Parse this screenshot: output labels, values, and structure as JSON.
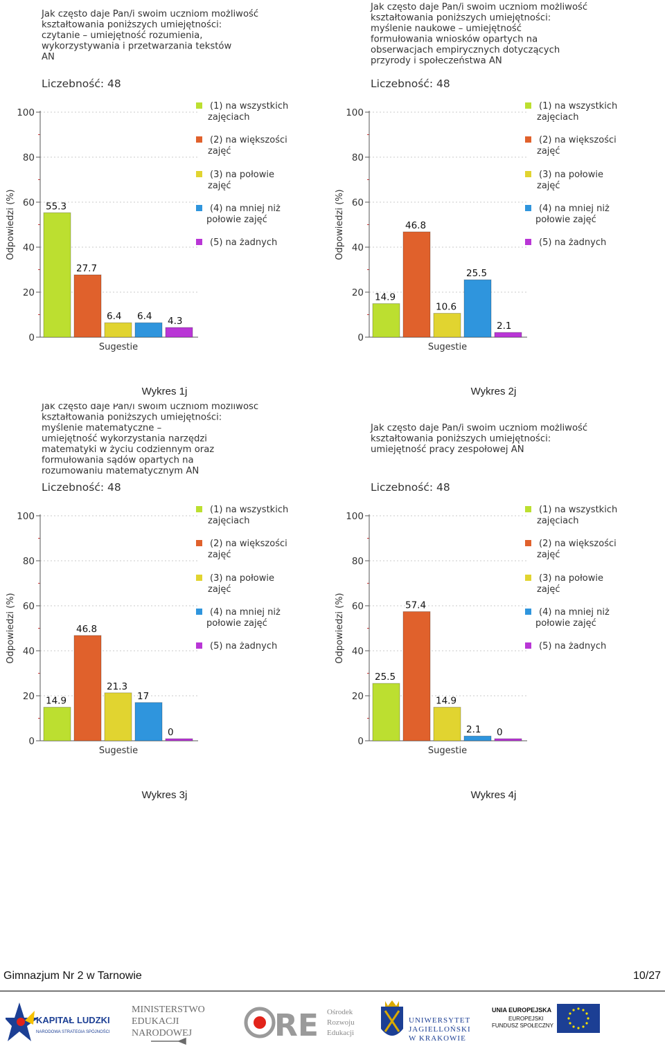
{
  "chart_data": [
    {
      "type": "bar",
      "title": "Jak często daje Pan/i swoim uczniom możliwość kształtowania poniższych umiejętności: czytanie – umiejętność rozumienia, wykorzystywania i przetwarzania tekstów AN",
      "title_lines": [
        "Jak często daje Pan/i swoim uczniom możliwość",
        "kształtowania poniższych umiejętności:",
        "czytanie – umiejętność rozumienia,",
        "wykorzystywania i przetwarzania tekstów",
        "AN"
      ],
      "count_label": "Liczebność: 48",
      "categories": [
        "(1) na wszystkich zajęciach",
        "(2) na większości zajęć",
        "(3) na połowie zajęć",
        "(4) na mniej niż połowie zajęć",
        "(5) na żadnych"
      ],
      "values": [
        55.3,
        27.7,
        6.4,
        6.4,
        4.3
      ],
      "value_labels": [
        "55.3",
        "27.7",
        "6.4",
        "6.4",
        "4.3"
      ],
      "xlabel": "Sugestie",
      "ylabel": "Odpowiedzi (%)",
      "ylim": [
        0,
        100
      ],
      "yticks": [
        "0",
        "20",
        "40",
        "60",
        "80",
        "100"
      ],
      "caption": "Wykres 1j"
    },
    {
      "type": "bar",
      "title": "Jak często daje Pan/i swoim uczniom możliwość kształtowania poniższych umiejętności: myślenie naukowe – umiejętność formułowania wniosków opartych na obserwacjach empirycznych dotyczących przyrody i społeczeństwa AN",
      "title_lines": [
        "Jak często daje Pan/i swoim uczniom możliwość",
        "kształtowania poniższych umiejętności:",
        "myślenie naukowe – umiejętność",
        "formułowania wniosków opartych na",
        "obserwacjach empirycznych dotyczących",
        "przyrody i społeczeństwa AN"
      ],
      "count_label": "Liczebność: 48",
      "categories": [
        "(1) na wszystkich zajęciach",
        "(2) na większości zajęć",
        "(3) na połowie zajęć",
        "(4) na mniej niż połowie zajęć",
        "(5) na żadnych"
      ],
      "values": [
        14.9,
        46.8,
        10.6,
        25.5,
        2.1
      ],
      "value_labels": [
        "14.9",
        "46.8",
        "10.6",
        "25.5",
        "2.1"
      ],
      "xlabel": "Sugestie",
      "ylabel": "Odpowiedzi (%)",
      "ylim": [
        0,
        100
      ],
      "yticks": [
        "0",
        "20",
        "40",
        "60",
        "80",
        "100"
      ],
      "caption": "Wykres 2j"
    },
    {
      "type": "bar",
      "title": "Jak często daje Pan/i swoim uczniom możliwość kształtowania poniższych umiejętności: myślenie matematyczne – umiejętność wykorzystania narzędzi matematyki w życiu codziennym oraz formułowania sądów opartych na rozumowaniu matematycznym AN",
      "title_lines": [
        "Jak często daje Pan/i swoim uczniom możliwość",
        "kształtowania poniższych umiejętności:",
        "myślenie matematyczne –",
        "umiejętność wykorzystania narzędzi",
        "matematyki w życiu codziennym oraz",
        "formułowania sądów opartych na",
        "rozumowaniu matematycznym AN"
      ],
      "count_label": "Liczebność: 48",
      "categories": [
        "(1) na wszystkich zajęciach",
        "(2) na większości zajęć",
        "(3) na połowie zajęć",
        "(4) na mniej niż połowie zajęć",
        "(5) na żadnych"
      ],
      "values": [
        14.9,
        46.8,
        21.3,
        17,
        0
      ],
      "value_labels": [
        "14.9",
        "46.8",
        "21.3",
        "17",
        "0"
      ],
      "xlabel": "Sugestie",
      "ylabel": "Odpowiedzi (%)",
      "ylim": [
        0,
        100
      ],
      "yticks": [
        "0",
        "20",
        "40",
        "60",
        "80",
        "100"
      ],
      "caption": "Wykres 3j"
    },
    {
      "type": "bar",
      "title": "Jak często daje Pan/i swoim uczniom możliwość kształtowania poniższych umiejętności: umiejętność pracy zespołowej AN",
      "title_lines": [
        "Jak często daje Pan/i swoim uczniom możliwość",
        "kształtowania poniższych umiejętności:",
        "umiejętność pracy zespołowej AN"
      ],
      "count_label": "Liczebność: 48",
      "categories": [
        "(1) na wszystkich zajęciach",
        "(2) na większości zajęć",
        "(3) na połowie zajęć",
        "(4) na mniej niż połowie zajęć",
        "(5) na żadnych"
      ],
      "values": [
        25.5,
        57.4,
        14.9,
        2.1,
        0
      ],
      "value_labels": [
        "25.5",
        "57.4",
        "14.9",
        "2.1",
        "0"
      ],
      "xlabel": "Sugestie",
      "ylabel": "Odpowiedzi (%)",
      "ylim": [
        0,
        100
      ],
      "yticks": [
        "0",
        "20",
        "40",
        "60",
        "80",
        "100"
      ],
      "caption": "Wykres 4j"
    }
  ],
  "legend_lines": [
    [
      "(1) na wszystkich",
      "zajęciach"
    ],
    [
      "(2) na większości",
      "zajęć"
    ],
    [
      "(3) na połowie",
      "zajęć"
    ],
    [
      "(4) na mniej niż",
      "połowie zajęć"
    ],
    [
      "(5) na żadnych"
    ]
  ],
  "colors": {
    "bars": [
      "#bcdf30",
      "#e0612c",
      "#e1d430",
      "#2f95dd",
      "#b936d6"
    ],
    "axis": "#555555",
    "tick_red": "#cc3333",
    "grid": "#c8c8c8"
  },
  "footer": {
    "school": "Gimnazjum Nr 2 w Tarnowie",
    "page": "10/27"
  },
  "logos": {
    "kapital_1": "KAPITAŁ LUDZKI",
    "kapital_2": "NARODOWA STRATEGIA SPÓJNOŚCI",
    "men_1": "MINISTERSTWO",
    "men_2": "EDUKACJI",
    "men_3": "NARODOWEJ",
    "ore_text": "RE",
    "ore_1": "Ośrodek",
    "ore_2": "Rozwoju",
    "ore_3": "Edukacji",
    "uj_1": "UNIWERSYTET",
    "uj_2": "JAGIELLOŃSKI",
    "uj_3": "W KRAKOWIE",
    "ue_1": "UNIA EUROPEJSKA",
    "ue_2": "EUROPEJSKI",
    "ue_3": "FUNDUSZ SPOŁECZNY"
  }
}
